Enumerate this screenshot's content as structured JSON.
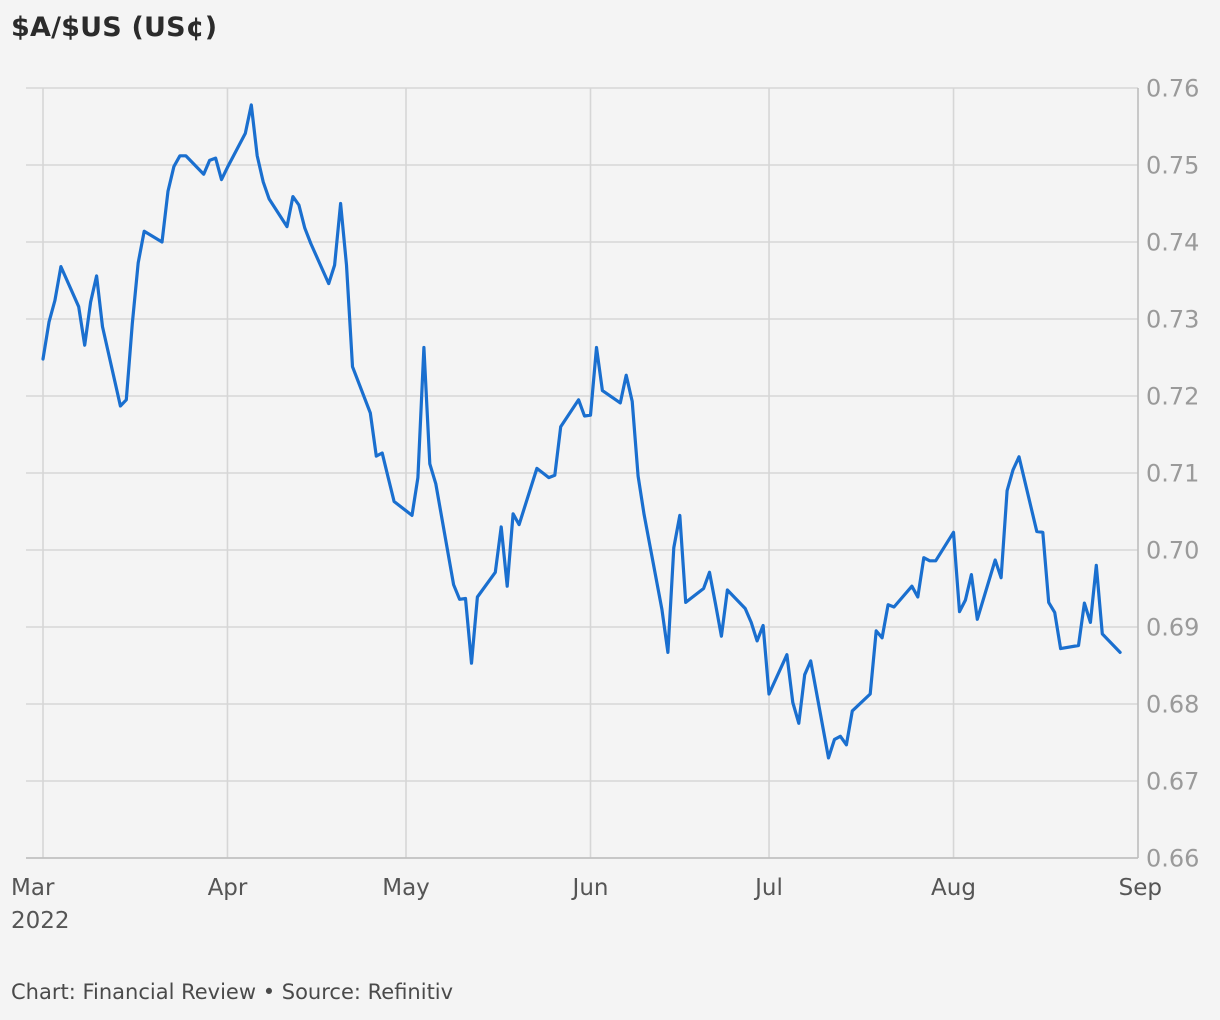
{
  "title": "$A/$US (US¢)",
  "footer": "Chart: Financial Review • Source: Refinitiv",
  "colors": {
    "line": "#1a6fcf",
    "grid": "#d6d6d6",
    "background": "#f4f4f4"
  },
  "chart_data": {
    "type": "line",
    "title": "$A/$US (US¢)",
    "xlabel": "",
    "ylabel": "",
    "ylim": [
      0.66,
      0.76
    ],
    "y_axis_position": "right",
    "grid": true,
    "yticks": [
      "0.76",
      "0.75",
      "0.74",
      "0.73",
      "0.72",
      "0.71",
      "0.70",
      "0.69",
      "0.68",
      "0.67",
      "0.66"
    ],
    "xticks": [
      {
        "date": "2022-03-01",
        "label": "Mar",
        "sub": "2022"
      },
      {
        "date": "2022-04-01",
        "label": "Apr"
      },
      {
        "date": "2022-05-01",
        "label": "May"
      },
      {
        "date": "2022-06-01",
        "label": "Jun"
      },
      {
        "date": "2022-07-01",
        "label": "Jul"
      },
      {
        "date": "2022-08-01",
        "label": "Aug"
      },
      {
        "date": "2022-09-01",
        "label": "Sep"
      }
    ],
    "series": [
      {
        "x": [
          "2022-03-01",
          "2022-03-02",
          "2022-03-03",
          "2022-03-04",
          "2022-03-07",
          "2022-03-08",
          "2022-03-09",
          "2022-03-10",
          "2022-03-11",
          "2022-03-14",
          "2022-03-15",
          "2022-03-16",
          "2022-03-17",
          "2022-03-18",
          "2022-03-21",
          "2022-03-22",
          "2022-03-23",
          "2022-03-24",
          "2022-03-25",
          "2022-03-28",
          "2022-03-29",
          "2022-03-30",
          "2022-03-31",
          "2022-04-01",
          "2022-04-04",
          "2022-04-05",
          "2022-04-06",
          "2022-04-07",
          "2022-04-08",
          "2022-04-11",
          "2022-04-12",
          "2022-04-13",
          "2022-04-14",
          "2022-04-15",
          "2022-04-18",
          "2022-04-19",
          "2022-04-20",
          "2022-04-21",
          "2022-04-22",
          "2022-04-25",
          "2022-04-26",
          "2022-04-27",
          "2022-04-28",
          "2022-04-29",
          "2022-05-02",
          "2022-05-03",
          "2022-05-04",
          "2022-05-05",
          "2022-05-06",
          "2022-05-09",
          "2022-05-10",
          "2022-05-11",
          "2022-05-12",
          "2022-05-13",
          "2022-05-16",
          "2022-05-17",
          "2022-05-18",
          "2022-05-19",
          "2022-05-20",
          "2022-05-23",
          "2022-05-24",
          "2022-05-25",
          "2022-05-26",
          "2022-05-27",
          "2022-05-30",
          "2022-05-31",
          "2022-06-01",
          "2022-06-02",
          "2022-06-03",
          "2022-06-06",
          "2022-06-07",
          "2022-06-08",
          "2022-06-09",
          "2022-06-10",
          "2022-06-13",
          "2022-06-14",
          "2022-06-15",
          "2022-06-16",
          "2022-06-17",
          "2022-06-20",
          "2022-06-21",
          "2022-06-22",
          "2022-06-23",
          "2022-06-24",
          "2022-06-27",
          "2022-06-28",
          "2022-06-29",
          "2022-06-30",
          "2022-07-01",
          "2022-07-04",
          "2022-07-05",
          "2022-07-06",
          "2022-07-07",
          "2022-07-08",
          "2022-07-11",
          "2022-07-12",
          "2022-07-13",
          "2022-07-14",
          "2022-07-15",
          "2022-07-18",
          "2022-07-19",
          "2022-07-20",
          "2022-07-21",
          "2022-07-22",
          "2022-07-25",
          "2022-07-26",
          "2022-07-27",
          "2022-07-28",
          "2022-07-29",
          "2022-08-01",
          "2022-08-02",
          "2022-08-03",
          "2022-08-04",
          "2022-08-05",
          "2022-08-08",
          "2022-08-09",
          "2022-08-10",
          "2022-08-11",
          "2022-08-12",
          "2022-08-15",
          "2022-08-16",
          "2022-08-17",
          "2022-08-18",
          "2022-08-19",
          "2022-08-22",
          "2022-08-23",
          "2022-08-24",
          "2022-08-25",
          "2022-08-26",
          "2022-08-29"
        ],
        "values": [
          0.7248,
          0.7296,
          0.7324,
          0.7368,
          0.7316,
          0.7266,
          0.7322,
          0.7356,
          0.729,
          0.7187,
          0.7195,
          0.7294,
          0.7373,
          0.7414,
          0.74,
          0.7466,
          0.7498,
          0.7512,
          0.7512,
          0.7488,
          0.7506,
          0.7509,
          0.7481,
          0.7497,
          0.7541,
          0.7578,
          0.7512,
          0.7478,
          0.7456,
          0.742,
          0.7459,
          0.7448,
          0.7418,
          0.7398,
          0.7346,
          0.737,
          0.745,
          0.737,
          0.7238,
          0.7178,
          0.7122,
          0.7126,
          0.7094,
          0.7063,
          0.7045,
          0.7094,
          0.7263,
          0.7112,
          0.7086,
          0.6955,
          0.6936,
          0.6937,
          0.6853,
          0.6939,
          0.6971,
          0.703,
          0.6953,
          0.7047,
          0.7033,
          0.7106,
          0.71,
          0.7094,
          0.7097,
          0.716,
          0.7195,
          0.7174,
          0.7175,
          0.7263,
          0.7207,
          0.7191,
          0.7227,
          0.7193,
          0.7096,
          0.7046,
          0.6923,
          0.6867,
          0.7003,
          0.7045,
          0.6932,
          0.695,
          0.6971,
          0.693,
          0.6888,
          0.6948,
          0.6924,
          0.6906,
          0.6882,
          0.6902,
          0.6813,
          0.6864,
          0.6802,
          0.6775,
          0.6838,
          0.6856,
          0.673,
          0.6754,
          0.6758,
          0.6747,
          0.6791,
          0.6813,
          0.6895,
          0.6886,
          0.6929,
          0.6926,
          0.6953,
          0.6939,
          0.699,
          0.6986,
          0.6986,
          0.7023,
          0.692,
          0.6935,
          0.6968,
          0.691,
          0.6987,
          0.6964,
          0.7077,
          0.7104,
          0.7121,
          0.7024,
          0.7023,
          0.6932,
          0.6919,
          0.6872,
          0.6876,
          0.6931,
          0.6906,
          0.698,
          0.6891,
          0.6867
        ]
      }
    ]
  }
}
